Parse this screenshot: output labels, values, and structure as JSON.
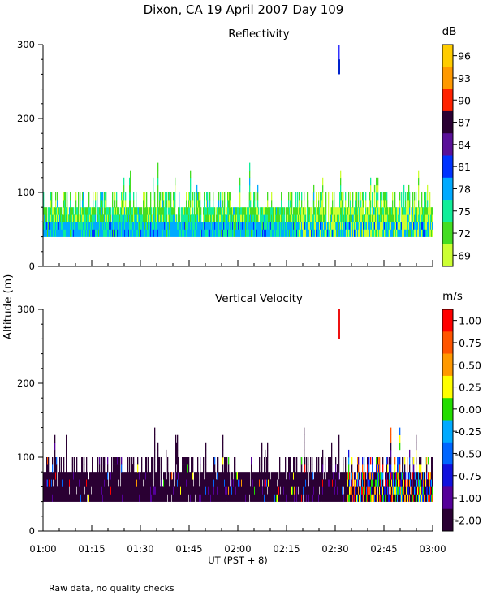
{
  "page": {
    "title": "Dixon, CA 19 April 2007  Day 109",
    "y_axis_label": "Altitude (m)",
    "x_axis_label": "UT  (PST + 8)",
    "footnote": "Raw data, no quality checks"
  },
  "chart_data": [
    {
      "type": "heatmap",
      "title": "Reflectivity",
      "xlabel": "UT  (PST + 8)",
      "ylabel": "Altitude (m)",
      "ylim": [
        0,
        300
      ],
      "yticks": [
        0,
        100,
        200,
        300
      ],
      "xlim": [
        "01:00",
        "03:00"
      ],
      "x_ticklabels": [
        "01:00",
        "01:15",
        "01:30",
        "01:45",
        "02:00",
        "02:15",
        "02:30",
        "02:45",
        "03:00"
      ],
      "colorbar": {
        "unit": "dB",
        "labels": [
          "96",
          "93",
          "90",
          "87",
          "84",
          "81",
          "78",
          "75",
          "72",
          "69"
        ],
        "colors": [
          "#ffcc00",
          "#ff9900",
          "#ff2200",
          "#2a0033",
          "#5a1099",
          "#0033ff",
          "#00aaff",
          "#11ee99",
          "#44dd22",
          "#ccff33"
        ]
      },
      "echo": {
        "base_altitude_m": 40,
        "typical_top_m": 80,
        "max_top_m": 140,
        "isolated_echo_m": [
          260,
          300
        ],
        "isolated_echo_time": "02:31",
        "isolated_echo_value_db": 81
      }
    },
    {
      "type": "heatmap",
      "title": "Vertical Velocity",
      "xlabel": "UT  (PST + 8)",
      "ylabel": "Altitude (m)",
      "ylim": [
        0,
        300
      ],
      "yticks": [
        0,
        100,
        200,
        300
      ],
      "xlim": [
        "01:00",
        "03:00"
      ],
      "x_ticklabels": [
        "01:00",
        "01:15",
        "01:30",
        "01:45",
        "02:00",
        "02:15",
        "02:30",
        "02:45",
        "03:00"
      ],
      "colorbar": {
        "unit": "m/s",
        "labels": [
          "1.00",
          "0.75",
          "0.50",
          "0.25",
          "0.00",
          "-0.25",
          "-0.50",
          "-0.75",
          "-1.00",
          "-2.00"
        ],
        "colors": [
          "#ff0000",
          "#ff5500",
          "#ff9900",
          "#ffff00",
          "#22dd00",
          "#00aaff",
          "#0066ff",
          "#1111dd",
          "#550099",
          "#2a0033"
        ]
      },
      "echo": {
        "base_altitude_m": 40,
        "typical_top_m": 80,
        "max_top_m": 140,
        "isolated_echo_m": [
          260,
          300
        ],
        "isolated_echo_time": "02:31",
        "isolated_echo_value_ms": 1.0
      }
    }
  ]
}
